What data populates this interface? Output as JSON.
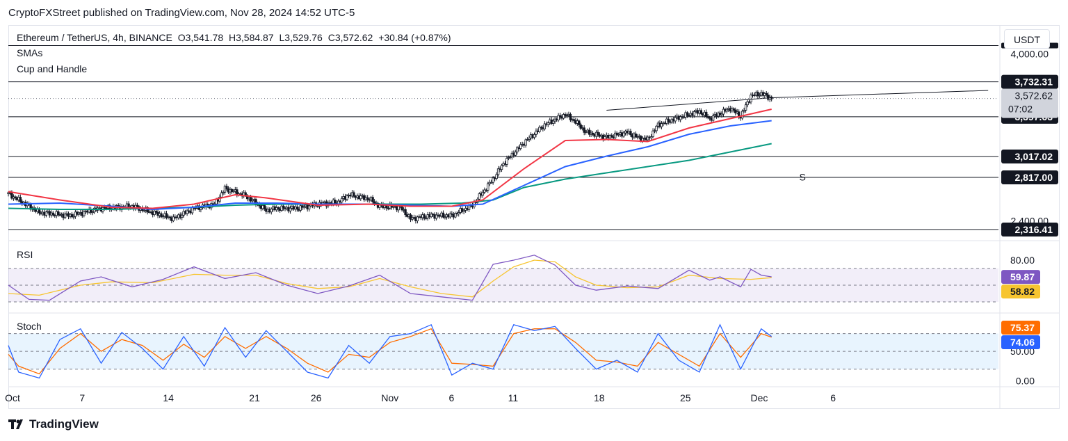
{
  "publisher": "CryptoFXStreet published on TradingView.com, Nov 28, 2024 14:52 UTC-5",
  "header": {
    "symbol": "Ethereum / TetherUS, 4h, BINANCE",
    "open": "O3,541.78",
    "high": "H3,584.87",
    "low": "L3,529.76",
    "close": "C3,572.62",
    "change": "+30.84 (+0.87%)"
  },
  "currency": "USDT",
  "indicators": {
    "sma": "SMAs",
    "pattern": "Cup and Handle",
    "rsi": "RSI",
    "stoch": "Stoch"
  },
  "footer": {
    "logo": "TradingView"
  },
  "colors": {
    "sma_fast": "#f23645",
    "sma_mid": "#2962ff",
    "sma_slow": "#089981",
    "rsi": "#7e57c2",
    "rsi_ma": "#f7c530",
    "stoch_k": "#2962ff",
    "stoch_d": "#ff6d00"
  },
  "chart_data": [
    {
      "type": "candlestick",
      "title": "Ethereum / TetherUS, 4h, BINANCE",
      "x_ticks": [
        "Oct",
        "7",
        "14",
        "21",
        "26",
        "Nov",
        "6",
        "11",
        "18",
        "25",
        "Dec",
        "6"
      ],
      "y_ticks": [
        "4,000.00",
        "2,400.00"
      ],
      "ylim": [
        2250,
        4250
      ],
      "horizontal_levels": [
        {
          "label": "3,732.31",
          "value": 3732.31
        },
        {
          "label": "3,397.63",
          "value": 3397.63
        },
        {
          "label": "3,017.02",
          "value": 3017.02
        },
        {
          "label": "2,817.00",
          "value": 2817.0
        },
        {
          "label": "2,316.41",
          "value": 2316.41
        },
        {
          "label": "",
          "value": 4080
        }
      ],
      "last_price": {
        "label": "3,572.62",
        "countdown": "07:02",
        "value": 3572.62
      },
      "annotation": "S",
      "close_path": [
        [
          0,
          2660
        ],
        [
          3,
          2480
        ],
        [
          6,
          2450
        ],
        [
          9,
          2520
        ],
        [
          12,
          2540
        ],
        [
          14,
          2480
        ],
        [
          16,
          2420
        ],
        [
          18,
          2520
        ],
        [
          20,
          2560
        ],
        [
          21,
          2710
        ],
        [
          23,
          2640
        ],
        [
          25,
          2500
        ],
        [
          26,
          2520
        ],
        [
          28,
          2520
        ],
        [
          30,
          2560
        ],
        [
          32,
          2580
        ],
        [
          33,
          2650
        ],
        [
          35,
          2610
        ],
        [
          36,
          2540
        ],
        [
          38,
          2530
        ],
        [
          39,
          2420
        ],
        [
          41,
          2450
        ],
        [
          43,
          2450
        ],
        [
          45,
          2550
        ],
        [
          47,
          2800
        ],
        [
          48,
          2950
        ],
        [
          50,
          3150
        ],
        [
          52,
          3320
        ],
        [
          54,
          3420
        ],
        [
          55,
          3350
        ],
        [
          56,
          3250
        ],
        [
          58,
          3200
        ],
        [
          60,
          3250
        ],
        [
          61,
          3200
        ],
        [
          62,
          3180
        ],
        [
          63,
          3320
        ],
        [
          65,
          3390
        ],
        [
          67,
          3450
        ],
        [
          68,
          3380
        ],
        [
          70,
          3480
        ],
        [
          71,
          3400
        ],
        [
          72,
          3600
        ],
        [
          73,
          3620
        ],
        [
          74,
          3572.62
        ]
      ],
      "sma_fast": [
        [
          0,
          2680
        ],
        [
          5,
          2600
        ],
        [
          10,
          2530
        ],
        [
          14,
          2520
        ],
        [
          18,
          2560
        ],
        [
          22,
          2650
        ],
        [
          25,
          2620
        ],
        [
          30,
          2550
        ],
        [
          35,
          2560
        ],
        [
          39,
          2540
        ],
        [
          43,
          2540
        ],
        [
          46,
          2600
        ],
        [
          50,
          2900
        ],
        [
          54,
          3170
        ],
        [
          58,
          3180
        ],
        [
          62,
          3160
        ],
        [
          66,
          3290
        ],
        [
          70,
          3380
        ],
        [
          74,
          3470
        ]
      ],
      "sma_mid": [
        [
          0,
          2560
        ],
        [
          5,
          2570
        ],
        [
          10,
          2540
        ],
        [
          14,
          2510
        ],
        [
          18,
          2530
        ],
        [
          22,
          2570
        ],
        [
          26,
          2570
        ],
        [
          30,
          2560
        ],
        [
          35,
          2560
        ],
        [
          39,
          2550
        ],
        [
          43,
          2540
        ],
        [
          46,
          2560
        ],
        [
          50,
          2740
        ],
        [
          54,
          2920
        ],
        [
          58,
          3020
        ],
        [
          62,
          3110
        ],
        [
          66,
          3230
        ],
        [
          70,
          3310
        ],
        [
          74,
          3360
        ]
      ],
      "sma_slow": [
        [
          0,
          2520
        ],
        [
          5,
          2510
        ],
        [
          10,
          2510
        ],
        [
          14,
          2520
        ],
        [
          18,
          2530
        ],
        [
          22,
          2550
        ],
        [
          26,
          2560
        ],
        [
          30,
          2560
        ],
        [
          35,
          2560
        ],
        [
          40,
          2560
        ],
        [
          44,
          2570
        ],
        [
          47,
          2600
        ],
        [
          50,
          2720
        ],
        [
          54,
          2800
        ],
        [
          58,
          2860
        ],
        [
          62,
          2920
        ],
        [
          66,
          2980
        ],
        [
          70,
          3060
        ],
        [
          74,
          3140
        ]
      ]
    },
    {
      "type": "line",
      "title": "RSI",
      "y_ticks": [
        "80.00"
      ],
      "ylim": [
        20,
        100
      ],
      "band": [
        30,
        70
      ],
      "last_values": {
        "rsi": "59.87",
        "rsi_ma": "58.82"
      },
      "rsi": [
        [
          0,
          50
        ],
        [
          2,
          33
        ],
        [
          4,
          32
        ],
        [
          7,
          55
        ],
        [
          9,
          60
        ],
        [
          12,
          48
        ],
        [
          15,
          57
        ],
        [
          18,
          72
        ],
        [
          21,
          58
        ],
        [
          24,
          65
        ],
        [
          27,
          50
        ],
        [
          30,
          40
        ],
        [
          33,
          49
        ],
        [
          36,
          62
        ],
        [
          39,
          40
        ],
        [
          42,
          36
        ],
        [
          45,
          32
        ],
        [
          47,
          75
        ],
        [
          49,
          80
        ],
        [
          51,
          86
        ],
        [
          53,
          74
        ],
        [
          55,
          50
        ],
        [
          57,
          44
        ],
        [
          60,
          49
        ],
        [
          63,
          46
        ],
        [
          66,
          68
        ],
        [
          68,
          56
        ],
        [
          69,
          60
        ],
        [
          71,
          48
        ],
        [
          72,
          69
        ],
        [
          73,
          62
        ],
        [
          74,
          60
        ]
      ],
      "rsi_ma": [
        [
          0,
          40
        ],
        [
          3,
          38
        ],
        [
          7,
          50
        ],
        [
          10,
          54
        ],
        [
          14,
          53
        ],
        [
          18,
          63
        ],
        [
          21,
          62
        ],
        [
          24,
          62
        ],
        [
          27,
          52
        ],
        [
          30,
          46
        ],
        [
          33,
          48
        ],
        [
          36,
          58
        ],
        [
          39,
          48
        ],
        [
          42,
          40
        ],
        [
          45,
          36
        ],
        [
          47,
          55
        ],
        [
          49,
          72
        ],
        [
          51,
          80
        ],
        [
          53,
          78
        ],
        [
          55,
          60
        ],
        [
          57,
          50
        ],
        [
          60,
          47
        ],
        [
          63,
          48
        ],
        [
          66,
          62
        ],
        [
          69,
          58
        ],
        [
          72,
          57
        ],
        [
          74,
          59
        ]
      ]
    },
    {
      "type": "line",
      "title": "Stoch",
      "y_ticks": [
        "50.00",
        "0.00"
      ],
      "ylim": [
        -5,
        110
      ],
      "band": [
        20,
        80
      ],
      "last_values": {
        "k": "75.37",
        "d": "74.06"
      },
      "k": [
        [
          0,
          60
        ],
        [
          1,
          15
        ],
        [
          3,
          5
        ],
        [
          5,
          70
        ],
        [
          7,
          88
        ],
        [
          9,
          30
        ],
        [
          11,
          82
        ],
        [
          13,
          55
        ],
        [
          15,
          20
        ],
        [
          17,
          75
        ],
        [
          19,
          25
        ],
        [
          21,
          90
        ],
        [
          23,
          40
        ],
        [
          25,
          85
        ],
        [
          27,
          50
        ],
        [
          29,
          15
        ],
        [
          31,
          5
        ],
        [
          33,
          60
        ],
        [
          35,
          30
        ],
        [
          37,
          75
        ],
        [
          39,
          80
        ],
        [
          41,
          95
        ],
        [
          43,
          10
        ],
        [
          45,
          30
        ],
        [
          47,
          20
        ],
        [
          49,
          95
        ],
        [
          51,
          85
        ],
        [
          53,
          92
        ],
        [
          55,
          55
        ],
        [
          57,
          20
        ],
        [
          59,
          35
        ],
        [
          61,
          15
        ],
        [
          63,
          80
        ],
        [
          65,
          35
        ],
        [
          67,
          15
        ],
        [
          69,
          95
        ],
        [
          71,
          20
        ],
        [
          73,
          88
        ],
        [
          74,
          75
        ]
      ],
      "d": [
        [
          0,
          45
        ],
        [
          1,
          25
        ],
        [
          3,
          12
        ],
        [
          5,
          55
        ],
        [
          7,
          80
        ],
        [
          9,
          50
        ],
        [
          11,
          70
        ],
        [
          13,
          60
        ],
        [
          15,
          35
        ],
        [
          17,
          62
        ],
        [
          19,
          40
        ],
        [
          21,
          75
        ],
        [
          23,
          55
        ],
        [
          25,
          75
        ],
        [
          27,
          55
        ],
        [
          29,
          30
        ],
        [
          31,
          15
        ],
        [
          33,
          45
        ],
        [
          35,
          40
        ],
        [
          37,
          65
        ],
        [
          39,
          75
        ],
        [
          41,
          88
        ],
        [
          43,
          30
        ],
        [
          45,
          28
        ],
        [
          47,
          25
        ],
        [
          49,
          80
        ],
        [
          51,
          88
        ],
        [
          53,
          88
        ],
        [
          55,
          65
        ],
        [
          57,
          35
        ],
        [
          59,
          32
        ],
        [
          61,
          25
        ],
        [
          63,
          65
        ],
        [
          65,
          45
        ],
        [
          67,
          25
        ],
        [
          69,
          80
        ],
        [
          71,
          40
        ],
        [
          73,
          80
        ],
        [
          74,
          74
        ]
      ]
    }
  ]
}
